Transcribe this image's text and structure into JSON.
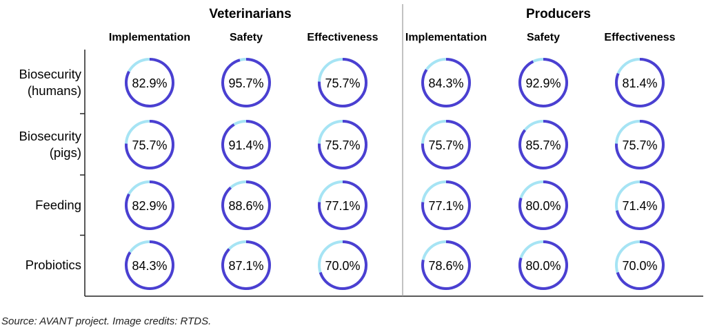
{
  "chart_data": {
    "type": "table",
    "groups": [
      {
        "title": "Veterinarians",
        "columns": [
          "Implementation",
          "Safety",
          "Effectiveness"
        ]
      },
      {
        "title": "Producers",
        "columns": [
          "Implementation",
          "Safety",
          "Effectiveness"
        ]
      }
    ],
    "rows": [
      {
        "label": [
          "Biosecurity",
          "(humans)"
        ],
        "values": [
          82.9,
          95.7,
          75.7,
          84.3,
          92.9,
          81.4
        ]
      },
      {
        "label": [
          "Biosecurity",
          "(pigs)"
        ],
        "values": [
          75.7,
          91.4,
          75.7,
          75.7,
          85.7,
          75.7
        ]
      },
      {
        "label": [
          "Feeding"
        ],
        "values": [
          82.9,
          88.6,
          77.1,
          77.1,
          80.0,
          71.4
        ]
      },
      {
        "label": [
          "Probiotics"
        ],
        "values": [
          84.3,
          87.1,
          70.0,
          78.6,
          80.0,
          70.0
        ]
      }
    ],
    "colors": {
      "filled": "#4b3fd1",
      "remaining": "#a6e4f4",
      "axis": "#222222",
      "divider": "#999999"
    }
  },
  "source": "Source: AVANT project. Image credits: RTDS."
}
